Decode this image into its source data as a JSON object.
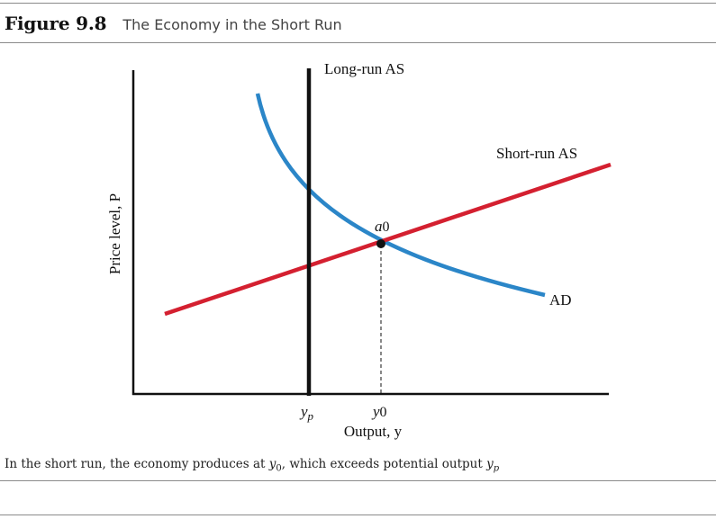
{
  "figure": {
    "number": "Figure 9.8",
    "title": "The Economy in the Short Run"
  },
  "diagram": {
    "y_axis_label": "Price level, P",
    "x_axis_label": "Output, y",
    "lras_label": "Long-run AS",
    "sras_label": "Short-run AS",
    "ad_label": "AD",
    "equilibrium_label": "a",
    "equilibrium_sub": "0",
    "yp_label": "y",
    "yp_sub": "p",
    "y0_label": "y",
    "y0_sub": "0"
  },
  "caption": {
    "text_1": "In the short run, the economy produces at ",
    "y0": "y",
    "y0_sub": "0",
    "text_2": ", which exceeds potential output ",
    "yp": "y",
    "yp_sub": "p"
  },
  "colors": {
    "ad_curve": "#2b86c8",
    "sras_line": "#d42030",
    "axes": "#111111",
    "lras_line": "#111111"
  }
}
